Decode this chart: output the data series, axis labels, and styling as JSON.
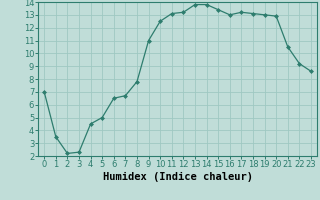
{
  "x": [
    0,
    1,
    2,
    3,
    4,
    5,
    6,
    7,
    8,
    9,
    10,
    11,
    12,
    13,
    14,
    15,
    16,
    17,
    18,
    19,
    20,
    21,
    22,
    23
  ],
  "y": [
    7,
    3.5,
    2.2,
    2.3,
    4.5,
    5.0,
    6.5,
    6.7,
    7.8,
    11.0,
    12.5,
    13.1,
    13.2,
    13.8,
    13.8,
    13.4,
    13.0,
    13.2,
    13.1,
    13.0,
    12.9,
    10.5,
    9.2,
    8.6
  ],
  "line_color": "#2e7d6e",
  "marker": "D",
  "marker_size": 2.0,
  "bg_color": "#c0ddd8",
  "grid_color": "#9fc8c2",
  "xlabel": "Humidex (Indice chaleur)",
  "xlim": [
    -0.5,
    23.5
  ],
  "ylim": [
    2,
    14
  ],
  "yticks": [
    2,
    3,
    4,
    5,
    6,
    7,
    8,
    9,
    10,
    11,
    12,
    13,
    14
  ],
  "xticks": [
    0,
    1,
    2,
    3,
    4,
    5,
    6,
    7,
    8,
    9,
    10,
    11,
    12,
    13,
    14,
    15,
    16,
    17,
    18,
    19,
    20,
    21,
    22,
    23
  ],
  "axis_color": "#2e7d6e",
  "label_fontsize": 7.5,
  "tick_fontsize": 6.0
}
